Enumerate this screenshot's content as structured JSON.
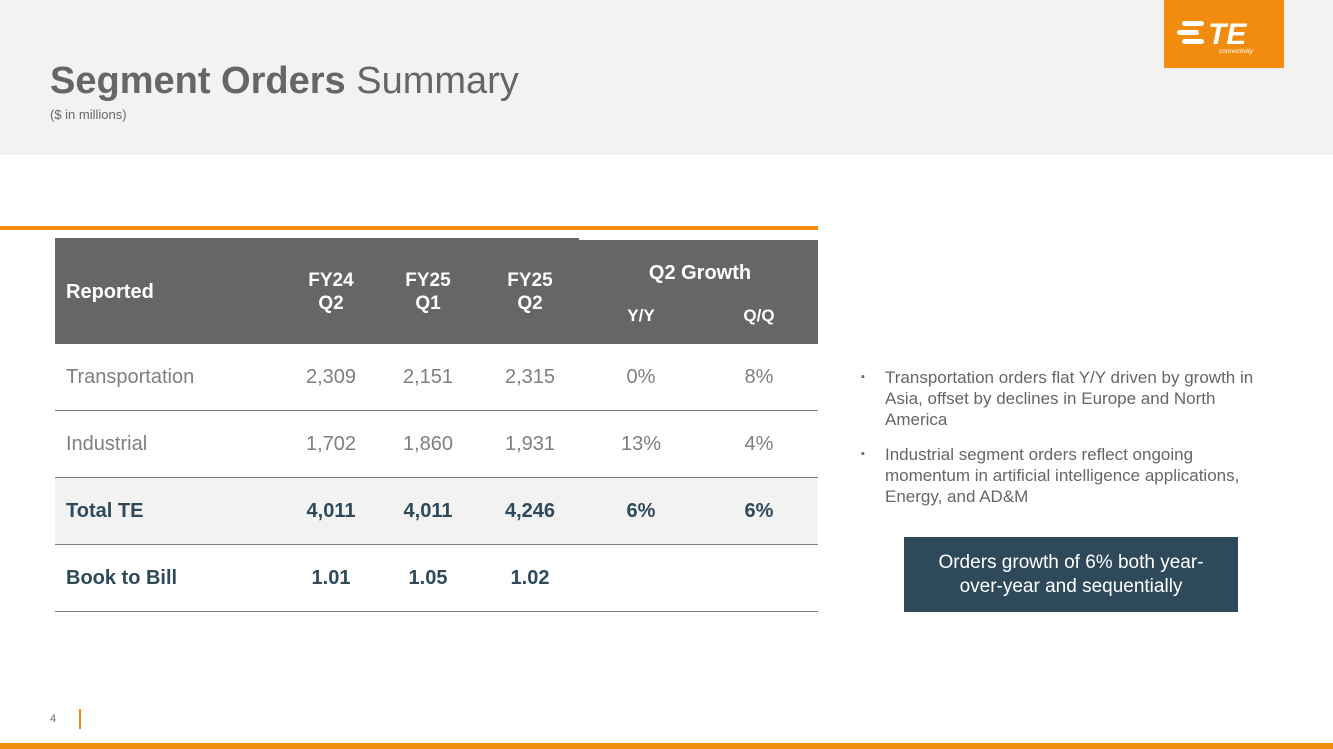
{
  "header": {
    "title_bold": "Segment Orders",
    "title_regular": "Summary",
    "subtitle": "($ in millions)"
  },
  "logo": {
    "icon": "te-connectivity-logo",
    "text": "TE",
    "tagline": "connectivity",
    "color": "#f28c0f"
  },
  "table": {
    "corner_label": "Reported",
    "columns": [
      {
        "line1": "FY24",
        "line2": "Q2"
      },
      {
        "line1": "FY25",
        "line2": "Q1"
      },
      {
        "line1": "FY25",
        "line2": "Q2"
      }
    ],
    "growth_header": "Q2 Growth",
    "growth_columns": [
      "Y/Y",
      "Q/Q"
    ],
    "rows": [
      {
        "label": "Transportation",
        "values": [
          "2,309",
          "2,151",
          "2,315"
        ],
        "yy": "0%",
        "qq": "8%"
      },
      {
        "label": "Industrial",
        "values": [
          "1,702",
          "1,860",
          "1,931"
        ],
        "yy": "13%",
        "qq": "4%"
      },
      {
        "label": "Total TE",
        "values": [
          "4,011",
          "4,011",
          "4,246"
        ],
        "yy": "6%",
        "qq": "6%"
      },
      {
        "label": "Book to Bill",
        "values": [
          "1.01",
          "1.05",
          "1.02"
        ],
        "yy": "",
        "qq": ""
      }
    ]
  },
  "bullets": [
    "Transportation orders flat Y/Y driven by growth in Asia, offset by declines in Europe and North America",
    "Industrial segment orders reflect ongoing momentum in artificial intelligence applications, Energy, and AD&M"
  ],
  "bullet_marker": "▪",
  "callout": "Orders growth of 6% both year-over-year and sequentially",
  "page_number": "4",
  "colors": {
    "accent_orange": "#f28c0f",
    "header_gray": "#666666",
    "navy": "#2e4a5a",
    "band": "#f2f2f2"
  }
}
